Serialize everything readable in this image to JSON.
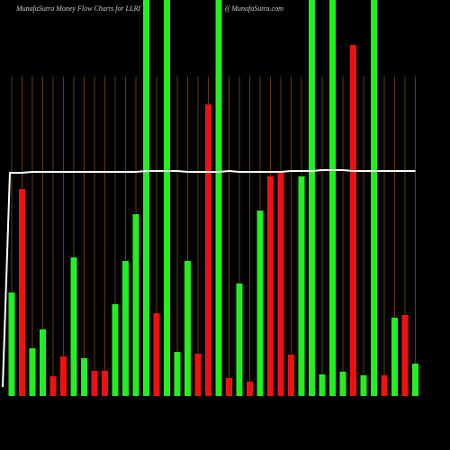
{
  "chart_data": {
    "type": "bar",
    "title": "MunafaSutra  Money Flow  Charts for LLRI",
    "subtitle": "(( MunafaSutra.com",
    "values": [
      115,
      230,
      53,
      74,
      22,
      44,
      154,
      42,
      28,
      28,
      102,
      150,
      202,
      440,
      92,
      440,
      49,
      150,
      47,
      324,
      440,
      20,
      125,
      16,
      206,
      244,
      248,
      46,
      244,
      440,
      24,
      440,
      27,
      390,
      23,
      440,
      23,
      87,
      90,
      36
    ],
    "colors": [
      "#22ee22",
      "#ee1111",
      "#22ee22",
      "#22ee22",
      "#ee1111",
      "#ee1111",
      "#22ee22",
      "#22ee22",
      "#ee1111",
      "#ee1111",
      "#22ee22",
      "#22ee22",
      "#22ee22",
      "#22ee22",
      "#ee1111",
      "#22ee22",
      "#22ee22",
      "#22ee22",
      "#ee1111",
      "#ee1111",
      "#22ee22",
      "#ee1111",
      "#22ee22",
      "#ee1111",
      "#22ee22",
      "#ee1111",
      "#ee1111",
      "#ee1111",
      "#22ee22",
      "#22ee22",
      "#22ee22",
      "#22ee22",
      "#22ee22",
      "#ee1111",
      "#22ee22",
      "#22ee22",
      "#ee1111",
      "#22ee22",
      "#ee1111",
      "#22ee22"
    ],
    "line": {
      "color": "#ffffff",
      "values": [
        248,
        248,
        249,
        249,
        249,
        249,
        249,
        249,
        249,
        249,
        249,
        249,
        249,
        250,
        250,
        250,
        250,
        249,
        249,
        249,
        249,
        250,
        249,
        249,
        249,
        249,
        249,
        250,
        250,
        250,
        251,
        251,
        251,
        250,
        250,
        250,
        250,
        250,
        250,
        250
      ]
    },
    "ylim": [
      0,
      440
    ],
    "grid": true,
    "grid_color": "#7a4a10"
  }
}
